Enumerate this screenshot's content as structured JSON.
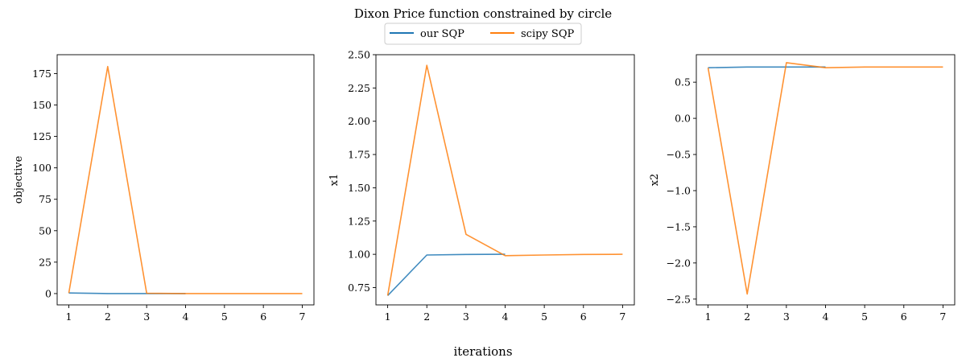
{
  "figure": {
    "title": "Dixon Price function constrained by circle",
    "xlabel": "iterations",
    "legend": {
      "placement": "top-center",
      "entries": [
        {
          "label": "our SQP",
          "color": "#1f77b4"
        },
        {
          "label": "scipy SQP",
          "color": "#ff7f0e"
        }
      ]
    }
  },
  "chart_data": [
    {
      "type": "line",
      "ylabel": "objective",
      "xlim": [
        0.7,
        7.3
      ],
      "ylim": [
        -9,
        190
      ],
      "xticks": [
        1,
        2,
        3,
        4,
        5,
        6,
        7
      ],
      "yticks": [
        0,
        25,
        50,
        75,
        100,
        125,
        150,
        175
      ],
      "ytick_labels": [
        "0",
        "25",
        "50",
        "75",
        "100",
        "125",
        "150",
        "175"
      ],
      "series": [
        {
          "name": "our SQP",
          "color": "#1f77b4",
          "x": [
            1,
            2,
            3,
            4
          ],
          "y": [
            0.5,
            0.02,
            0.0,
            0.0
          ]
        },
        {
          "name": "scipy SQP",
          "color": "#ff7f0e",
          "x": [
            1,
            2,
            3,
            4,
            5,
            6,
            7
          ],
          "y": [
            0.5,
            180.6,
            0.3,
            0.0,
            0.0,
            0.0,
            0.0
          ]
        }
      ]
    },
    {
      "type": "line",
      "ylabel": "x1",
      "xlim": [
        0.7,
        7.3
      ],
      "ylim": [
        0.62,
        2.5
      ],
      "xticks": [
        1,
        2,
        3,
        4,
        5,
        6,
        7
      ],
      "yticks": [
        0.75,
        1.0,
        1.25,
        1.5,
        1.75,
        2.0,
        2.25,
        2.5
      ],
      "ytick_labels": [
        "0.75",
        "1.00",
        "1.25",
        "1.50",
        "1.75",
        "2.00",
        "2.25",
        "2.50"
      ],
      "series": [
        {
          "name": "our SQP",
          "color": "#1f77b4",
          "x": [
            1,
            2,
            3,
            4
          ],
          "y": [
            0.69,
            0.995,
            0.999,
            1.0
          ]
        },
        {
          "name": "scipy SQP",
          "color": "#ff7f0e",
          "x": [
            1,
            2,
            3,
            4,
            5,
            6,
            7
          ],
          "y": [
            0.69,
            2.42,
            1.15,
            0.99,
            0.995,
            0.999,
            1.0
          ]
        }
      ]
    },
    {
      "type": "line",
      "ylabel": "x2",
      "xlim": [
        0.7,
        7.3
      ],
      "ylim": [
        -2.58,
        0.88
      ],
      "xticks": [
        1,
        2,
        3,
        4,
        5,
        6,
        7
      ],
      "yticks": [
        -2.5,
        -2.0,
        -1.5,
        -1.0,
        -0.5,
        0.0,
        0.5
      ],
      "ytick_labels": [
        "−2.5",
        "−2.0",
        "−1.5",
        "−1.0",
        "−0.5",
        "0.0",
        "0.5"
      ],
      "series": [
        {
          "name": "our SQP",
          "color": "#1f77b4",
          "x": [
            1,
            2,
            3,
            4
          ],
          "y": [
            0.7,
            0.71,
            0.71,
            0.71
          ]
        },
        {
          "name": "scipy SQP",
          "color": "#ff7f0e",
          "x": [
            1,
            2,
            3,
            4,
            5,
            6,
            7
          ],
          "y": [
            0.7,
            -2.43,
            0.77,
            0.7,
            0.71,
            0.71,
            0.71
          ]
        }
      ]
    }
  ]
}
